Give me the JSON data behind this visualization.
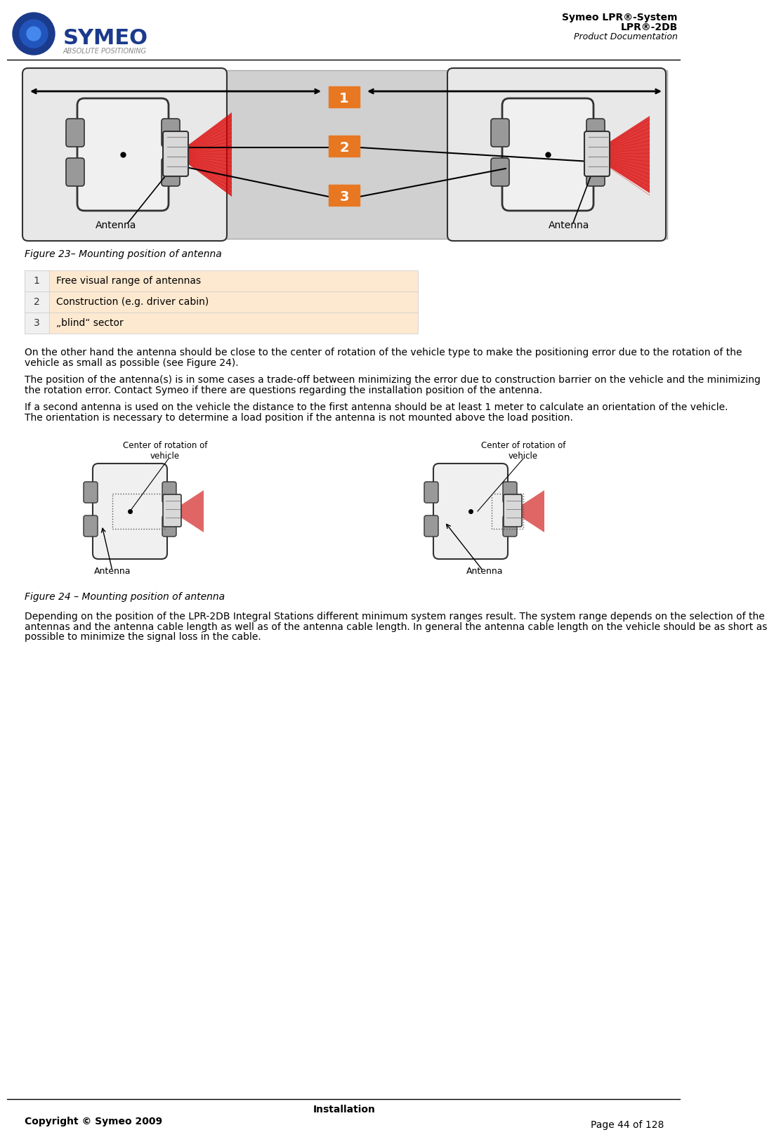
{
  "title_right_line1": "Symeo LPR®-System",
  "title_right_line2": "LPR®-2DB",
  "title_right_line3": "Product Documentation",
  "figure23_caption": "Figure 23– Mounting position of antenna",
  "table_rows": [
    {
      "num": "1",
      "text": "Free visual range of antennas"
    },
    {
      "num": "2",
      "text": "Construction (e.g. driver cabin)"
    },
    {
      "num": "3",
      "text": "„blind“ sector"
    }
  ],
  "table_bg_colors": [
    "#fde9d0",
    "#fde9d0",
    "#fde9d0"
  ],
  "table_num_bg": "#e87722",
  "para1": "On the other hand the antenna should be close to the center of rotation of the vehicle type to make the positioning error due to the rotation of the vehicle as small as possible (see Figure 24).",
  "para2": "The position of the antenna(s) is in some cases a trade-off between minimizing the error due to construction barrier on the vehicle and the minimizing the rotation error. Contact Symeo if there are questions regarding the installation position of the antenna.",
  "para3": "If a second antenna is used on the vehicle the distance to the first antenna should be at least 1 meter to calculate an orientation of the vehicle. The orientation is necessary to determine a load position if the antenna is not mounted above the load position.",
  "figure24_caption": "Figure 24 – Mounting position of antenna",
  "para4": "Depending on the position of the LPR-2DB Integral Stations different minimum system ranges result. The system range depends on the selection of the antennas and the antenna cable length as well as of the antenna cable length. In general the antenna cable length on the vehicle should be as short as possible to minimize the signal loss in the cable.",
  "footer_center": "Installation",
  "footer_left": "Copyright © Symeo 2009",
  "footer_right": "Page 44 of 128",
  "page_bg": "#ffffff",
  "header_line_color": "#000000",
  "footer_line_color": "#000000"
}
